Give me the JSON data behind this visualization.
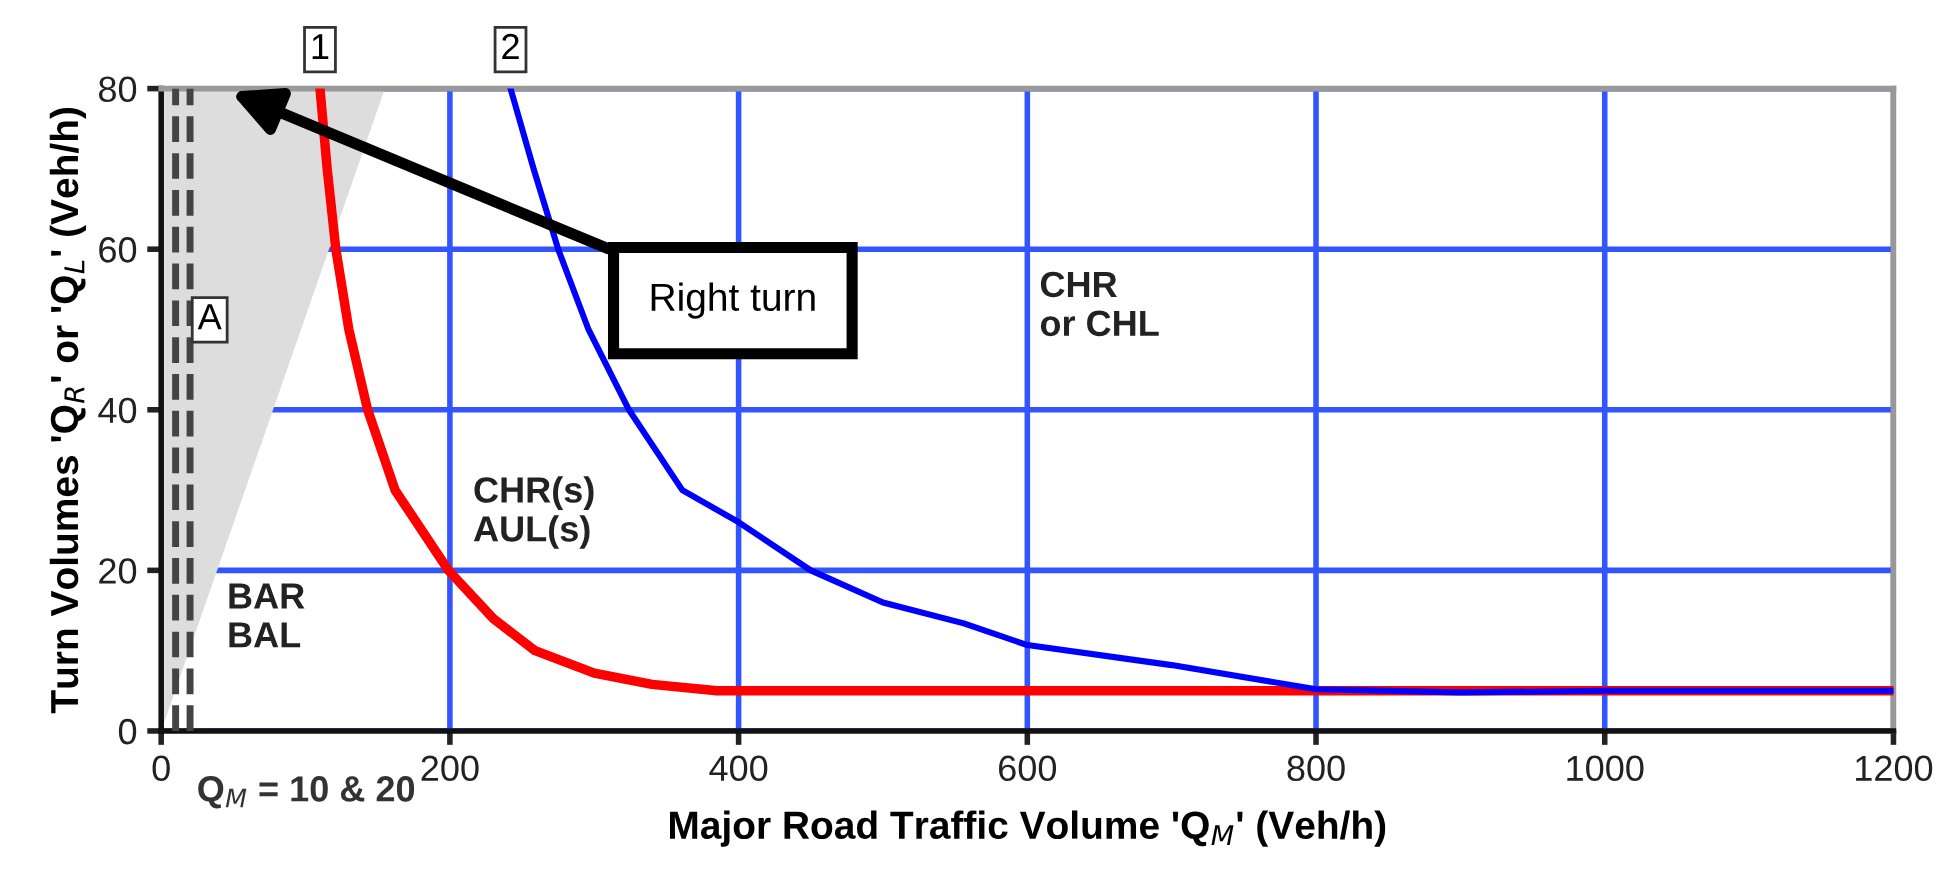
{
  "chart_data": {
    "type": "line",
    "xlabel": "Major Road Traffic Volume 'Q$_{M}$' (Veh/h)",
    "ylabel": "Turn Volumes 'Q$_{R}$' or 'Q$_{L}$' (Veh/h)",
    "xlim": [
      0,
      1200
    ],
    "ylim": [
      0,
      80
    ],
    "xticks": [
      0,
      200,
      400,
      600,
      800,
      1000,
      1200
    ],
    "yticks": [
      0,
      20,
      40,
      60,
      80
    ],
    "grid": true,
    "marker": "none",
    "line_style": "solid",
    "series": [
      {
        "type": "area",
        "color": "#dddddd",
        "x": [
          0,
          155
        ],
        "values": [
          0,
          80
        ]
      },
      {
        "name": "1",
        "color": "#ff0000",
        "x": [
          110,
          115,
          121,
          130,
          143,
          162,
          199,
          230,
          259,
          300,
          340,
          385,
          600,
          800,
          1000,
          1200
        ],
        "values": [
          80,
          70,
          60,
          50,
          40,
          30,
          20,
          14,
          10,
          7.2,
          5.8,
          5,
          5,
          5,
          5,
          5
        ]
      },
      {
        "name": "2",
        "color": "#0000ff",
        "x": [
          242,
          258,
          275,
          296,
          324,
          361,
          400,
          450,
          500,
          556,
          600,
          700,
          800,
          900,
          1000,
          1200
        ],
        "values": [
          80,
          70,
          60,
          50,
          40,
          30,
          26,
          20,
          16,
          13.4,
          10.7,
          8.2,
          5.2,
          4.8,
          5,
          5
        ]
      }
    ],
    "ref_lines": [
      {
        "axis": "x",
        "value": 10,
        "label": null,
        "color": "#444444",
        "line_style": "dashed"
      },
      {
        "axis": "x",
        "value": 20,
        "label": null,
        "color": "#444444",
        "line_style": "dashed"
      }
    ],
    "annotations": [
      {
        "text": "Q$_{M}$ = 10 & 20",
        "x": 15,
        "y": 0
      },
      "A",
      "BAR\nBAL",
      "CHR(s)\nAUL(s)",
      "CHR\nor CHL",
      "Right turn"
    ]
  }
}
